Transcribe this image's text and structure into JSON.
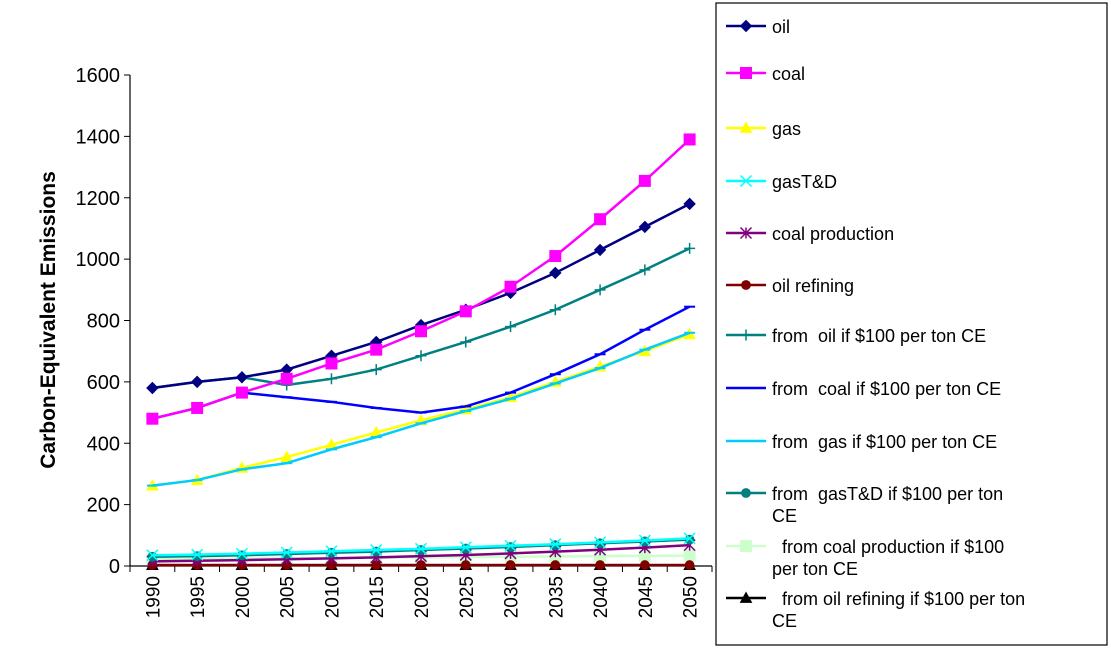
{
  "chart_data": {
    "type": "line",
    "title": "",
    "xlabel": "",
    "ylabel": "Carbon-Equivalent Emissions",
    "ylim": [
      0,
      1600
    ],
    "yticks": [
      0,
      200,
      400,
      600,
      800,
      1000,
      1200,
      1400,
      1600
    ],
    "x": [
      "1990",
      "1995",
      "2000",
      "2005",
      "2010",
      "2015",
      "2020",
      "2025",
      "2030",
      "2035",
      "2040",
      "2045",
      "2050"
    ],
    "grid": false,
    "legend_position": "right",
    "series": [
      {
        "name": "oil",
        "color": "#000080",
        "marker": "diamond",
        "values": [
          580,
          600,
          615,
          640,
          685,
          730,
          785,
          835,
          890,
          955,
          1030,
          1105,
          1180
        ]
      },
      {
        "name": "coal",
        "color": "#ff00ff",
        "marker": "square",
        "values": [
          480,
          515,
          565,
          610,
          660,
          705,
          765,
          830,
          910,
          1010,
          1130,
          1255,
          1390
        ]
      },
      {
        "name": "gas",
        "color": "#ffff00",
        "marker": "triangle",
        "values": [
          262,
          280,
          320,
          355,
          395,
          435,
          475,
          510,
          550,
          600,
          650,
          700,
          755
        ]
      },
      {
        "name": "gasT&D",
        "color": "#00ffff",
        "marker": "x",
        "values": [
          35,
          37,
          40,
          44,
          48,
          52,
          56,
          61,
          66,
          71,
          77,
          83,
          90
        ]
      },
      {
        "name": "coal production",
        "color": "#800080",
        "marker": "star",
        "values": [
          15,
          17,
          19,
          22,
          25,
          28,
          32,
          36,
          41,
          47,
          53,
          60,
          68
        ]
      },
      {
        "name": "oil refining",
        "color": "#800000",
        "marker": "circle",
        "values": [
          3,
          3,
          3,
          3,
          3,
          3,
          3,
          3,
          3,
          3,
          3,
          3,
          3
        ]
      },
      {
        "name": "from  oil if $100 per ton CE",
        "color": "#008080",
        "marker": "plus",
        "values": [
          580,
          600,
          615,
          590,
          610,
          640,
          685,
          730,
          780,
          835,
          900,
          965,
          1035
        ]
      },
      {
        "name": "from  coal if $100 per ton CE",
        "color": "#0000ff",
        "marker": "dash",
        "values": [
          480,
          515,
          565,
          550,
          535,
          515,
          500,
          520,
          565,
          625,
          690,
          770,
          845
        ]
      },
      {
        "name": "from  gas if $100 per ton CE",
        "color": "#00ccff",
        "marker": "dash",
        "values": [
          262,
          280,
          315,
          335,
          380,
          420,
          465,
          505,
          545,
          595,
          645,
          705,
          760
        ]
      },
      {
        "name": "from  gasT&D if $100 per ton CE",
        "color": "#008080",
        "marker": "circle",
        "values": [
          30,
          32,
          35,
          39,
          43,
          47,
          52,
          57,
          62,
          68,
          74,
          80,
          86
        ]
      },
      {
        "name": "from coal production if $100 per ton CE",
        "color": "#ccffcc",
        "marker": "square",
        "values": [
          22,
          23,
          24,
          25,
          26,
          27,
          28,
          29,
          30,
          31,
          32,
          33,
          34
        ]
      },
      {
        "name": "from oil refining if $100 per ton CE",
        "color": "#000000",
        "marker": "triangle",
        "values": [
          3,
          3,
          3,
          3,
          3,
          3,
          3,
          3,
          3,
          3,
          3,
          3,
          3
        ]
      }
    ]
  },
  "legend": {
    "items": [
      {
        "lines": [
          "oil"
        ]
      },
      {
        "lines": [
          "coal"
        ]
      },
      {
        "lines": [
          "gas"
        ]
      },
      {
        "lines": [
          "gasT&D"
        ]
      },
      {
        "lines": [
          "coal production"
        ]
      },
      {
        "lines": [
          "oil refining"
        ]
      },
      {
        "lines": [
          "from  oil if $100 per ton CE"
        ]
      },
      {
        "lines": [
          "from  coal if $100 per ton CE"
        ]
      },
      {
        "lines": [
          "from  gas if $100 per ton CE"
        ]
      },
      {
        "lines": [
          "from  gasT&D if $100 per ton",
          "CE"
        ]
      },
      {
        "lines": [
          "  from coal production if $100",
          "per ton CE"
        ]
      },
      {
        "lines": [
          "  from oil refining if $100 per ton",
          "CE"
        ]
      }
    ]
  }
}
